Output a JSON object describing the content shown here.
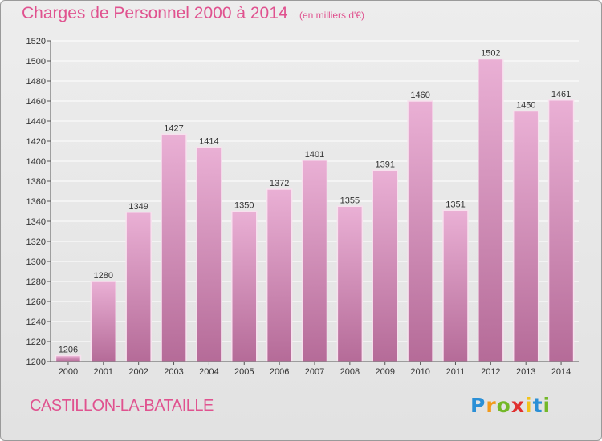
{
  "title": "Charges de Personnel 2000 à 2014",
  "subtitle": "(en milliers d'€)",
  "location": "CASTILLON-LA-BATAILLE",
  "logo": {
    "letters": [
      "P",
      "r",
      "o",
      "x",
      "i",
      "t",
      "i"
    ],
    "colors": [
      "#2a8fd6",
      "#f29a1c",
      "#73b828",
      "#e0302f",
      "#f2c31a",
      "#2a8fd6",
      "#73b828"
    ]
  },
  "colors": {
    "accent": "#e0528f",
    "bar_top": "#eab0d5",
    "bar_bottom": "#b56b98",
    "bar_edge": "#f7e1ee"
  },
  "chart_data": {
    "type": "bar",
    "categories": [
      "2000",
      "2001",
      "2002",
      "2003",
      "2004",
      "2005",
      "2006",
      "2007",
      "2008",
      "2009",
      "2010",
      "2011",
      "2012",
      "2013",
      "2014"
    ],
    "values": [
      1206,
      1280,
      1349,
      1427,
      1414,
      1350,
      1372,
      1401,
      1355,
      1391,
      1460,
      1351,
      1502,
      1450,
      1461
    ],
    "ylim": [
      1200,
      1520
    ],
    "yticks": [
      1200,
      1220,
      1240,
      1260,
      1280,
      1300,
      1320,
      1340,
      1360,
      1380,
      1400,
      1420,
      1440,
      1460,
      1480,
      1500,
      1520
    ],
    "grid": true
  }
}
